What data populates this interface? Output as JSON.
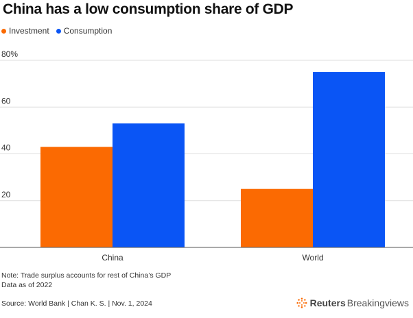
{
  "title": "China has a low consumption share of GDP",
  "colors": {
    "investment": "#fb6a02",
    "consumption": "#0a55f5",
    "grid": "#dddddd",
    "axis": "#555555"
  },
  "legend": [
    {
      "label": "Investment",
      "color": "#fb6a02"
    },
    {
      "label": "Consumption",
      "color": "#0a55f5"
    }
  ],
  "chart_data": {
    "type": "bar",
    "title": "China has a low consumption share of GDP",
    "categories": [
      "China",
      "World"
    ],
    "series": [
      {
        "name": "Investment",
        "values": [
          43,
          25
        ]
      },
      {
        "name": "Consumption",
        "values": [
          53,
          75
        ]
      }
    ],
    "ylim": [
      0,
      80
    ],
    "yticks": [
      20,
      40,
      60,
      80
    ],
    "ytick_labels": [
      "20",
      "40",
      "60",
      "80%"
    ],
    "grid": true,
    "legend_position": "top-left"
  },
  "footer": {
    "note_line1": "Note: Trade surplus accounts for rest of China’s GDP",
    "note_line2": "Data as of 2022",
    "source": "Source: World Bank | Chan K. S. | Nov. 1, 2024",
    "brand_bold": "Reuters",
    "brand_light": "Breakingviews"
  }
}
